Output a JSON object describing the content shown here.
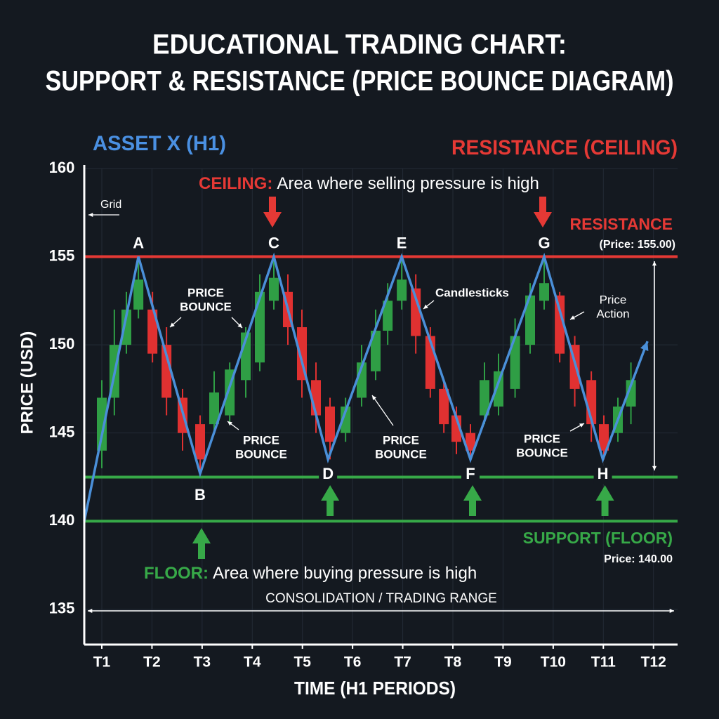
{
  "chart_data": {
    "type": "candlestick",
    "title": [
      "EDUCATIONAL TRADING CHART:",
      "SUPPORT & RESISTANCE (PRICE BOUNCE DIAGRAM)"
    ],
    "subtitle": "ASSET X (H1)",
    "xlabel": "TIME (H1 PERIODS)",
    "ylabel": "PRICE (USD)",
    "xlim": [
      0.65,
      12.48
    ],
    "xticks": [
      {
        "value": 1,
        "label": "T1"
      },
      {
        "value": 2,
        "label": "T2"
      },
      {
        "value": 3,
        "label": "T3"
      },
      {
        "value": 4,
        "label": "T4"
      },
      {
        "value": 5,
        "label": "T5"
      },
      {
        "value": 6,
        "label": "T6"
      },
      {
        "value": 7,
        "label": "T7"
      },
      {
        "value": 8,
        "label": "T8"
      },
      {
        "value": 9,
        "label": "T9"
      },
      {
        "value": 10,
        "label": "T10"
      },
      {
        "value": 11,
        "label": "T11"
      },
      {
        "value": 12,
        "label": "T12"
      }
    ],
    "ylim": [
      133,
      160
    ],
    "yticks": [
      135,
      140,
      145,
      150,
      155,
      160
    ],
    "grid": true,
    "up_color": "#2f9e45",
    "down_color": "#e03131",
    "candles": {
      "x": [
        1.0,
        1.25,
        1.49,
        1.73,
        2.01,
        2.29,
        2.61,
        2.96,
        3.24,
        3.55,
        3.87,
        4.15,
        4.43,
        4.71,
        4.99,
        5.27,
        5.55,
        5.86,
        6.18,
        6.46,
        6.7,
        6.98,
        7.26,
        7.55,
        7.82,
        8.07,
        8.35,
        8.63,
        8.91,
        9.24,
        9.54,
        9.82,
        10.13,
        10.43,
        10.76,
        11.01,
        11.29,
        11.55
      ],
      "open": [
        144,
        147,
        150,
        152,
        152,
        150,
        147,
        145.5,
        145.5,
        146,
        148,
        149,
        152.5,
        153,
        151,
        148,
        146.5,
        145,
        147,
        148.5,
        150.8,
        152.5,
        153.2,
        150.5,
        147.5,
        146,
        145,
        146,
        146.5,
        147.5,
        150,
        152.5,
        152.8,
        150,
        148,
        145.5,
        145,
        146.5
      ],
      "high": [
        148,
        152,
        153,
        155,
        153,
        151,
        147.5,
        146,
        148.5,
        149,
        151,
        154,
        155,
        154,
        152,
        149,
        147,
        147,
        150,
        152,
        153.5,
        155,
        154,
        151,
        148,
        146.5,
        145.5,
        149,
        149.5,
        151.5,
        153.5,
        155,
        153,
        150.5,
        148.5,
        146,
        147,
        149
      ],
      "low": [
        143,
        146,
        149.5,
        151.5,
        149,
        146,
        144,
        142.7,
        145,
        145.5,
        147,
        148.5,
        152,
        150,
        147,
        145,
        143.5,
        144.5,
        146.5,
        148,
        150,
        152,
        149.5,
        147,
        145,
        143.8,
        143.5,
        145.5,
        146,
        147,
        149.5,
        152,
        149,
        146.5,
        144.5,
        143.5,
        144.5,
        145.5
      ],
      "close": [
        147,
        150,
        152,
        153.7,
        149.5,
        147,
        145,
        143.5,
        147.3,
        148.6,
        150.7,
        153,
        153.8,
        151,
        148,
        146,
        144.5,
        146.5,
        149,
        150.8,
        152.5,
        153.7,
        150.5,
        147.5,
        145.5,
        144.5,
        144,
        148,
        148.5,
        150.5,
        152.8,
        153.5,
        149.5,
        147.5,
        145.5,
        144,
        146.5,
        148
      ]
    },
    "price_line": {
      "color": "#4a8fd8",
      "x": [
        0.65,
        1.73,
        2.96,
        4.43,
        5.51,
        6.98,
        8.35,
        9.82,
        10.99,
        11.88
      ],
      "y": [
        140,
        155,
        142.7,
        155,
        143.5,
        155,
        143.5,
        155,
        143.5,
        150.2
      ],
      "labels": [
        null,
        "A",
        "B",
        "C",
        "D",
        "E",
        "F",
        "G",
        "H",
        null
      ]
    },
    "levels": [
      {
        "value": 155,
        "color": "#e53935"
      },
      {
        "value": 142.5,
        "color": "#37a948"
      },
      {
        "value": 140,
        "color": "#37a948"
      }
    ],
    "annotations": {
      "header_right": "RESISTANCE (CEILING)",
      "ceiling_label": "CEILING:",
      "ceiling_text": "Area where selling pressure is high",
      "grid": "Grid",
      "resistance": "RESISTANCE",
      "resistance_price": "(Price: 155.00)",
      "candlesticks": "Candlesticks",
      "price_action": [
        "Price",
        "Action"
      ],
      "bounces": [
        [
          "PRICE",
          "BOUNCE"
        ],
        [
          "PRICE",
          "BOUNCE"
        ],
        [
          "PRICE",
          "BOUNCE"
        ],
        [
          "PRICE",
          "BOUNCE"
        ]
      ],
      "support": "SUPPORT (FLOOR)",
      "support_price": "Price: 140.00",
      "floor_label": "FLOOR:",
      "floor_text": "Area where buying pressure is high",
      "range": "CONSOLIDATION / TRADING RANGE"
    }
  }
}
